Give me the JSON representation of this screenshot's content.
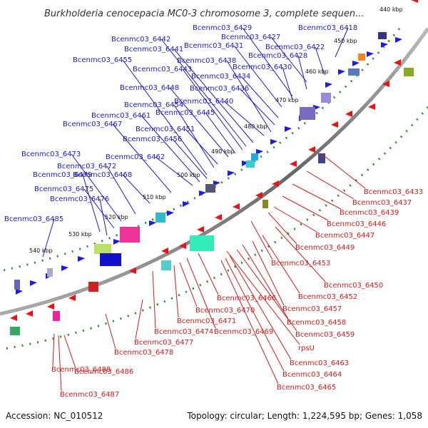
{
  "title": "Burkholderia cenocepacia MC0-3 chromosome 3, complete sequen...",
  "footer": {
    "accession": "Accession: NC_010512",
    "summary": "Topology: circular; Length: 1,224,595 bp; Genes: 1,058"
  },
  "ticks": [
    "440 kbp",
    "450 kbp",
    "460 kbp",
    "470 kbp",
    "480 kbp",
    "490 kbp",
    "500 kbp",
    "510 kbp",
    "520 kbp",
    "530 kbp",
    "540 kbp"
  ],
  "forward_genes": [
    "Bcenmc03_6418",
    "Bcenmc03_6422",
    "Bcenmc03_6427",
    "Bcenmc03_6428",
    "Bcenmc03_6429",
    "Bcenmc03_6430",
    "Bcenmc03_6431",
    "Bcenmc03_6434",
    "Bcenmc03_6436",
    "Bcenmc03_6438",
    "Bcenmc03_6440",
    "Bcenmc03_6441",
    "Bcenmc03_6442",
    "Bcenmc03_6443",
    "Bcenmc03_6445",
    "Bcenmc03_6448",
    "Bcenmc03_6451",
    "Bcenmc03_6454",
    "Bcenmc03_6455",
    "Bcenmc03_6456",
    "Bcenmc03_6461",
    "Bcenmc03_6462",
    "Bcenmc03_6467",
    "Bcenmc03_6468",
    "Bcenmc03_6472",
    "Bcenmc03_6473",
    "Bcenmc03_6475",
    "Bcenmc03_6476",
    "Bcenmc03_6479",
    "Bcenmc03_6485"
  ],
  "reverse_genes": [
    "Bcenmc03_6433",
    "Bcenmc03_6437",
    "Bcenmc03_6439",
    "Bcenmc03_6446",
    "Bcenmc03_6447",
    "Bcenmc03_6449",
    "Bcenmc03_6453",
    "Bcenmc03_6450",
    "Bcenmc03_6452",
    "Bcenmc03_6457",
    "Bcenmc03_6458",
    "Bcenmc03_6459",
    "rpsU",
    "Bcenmc03_6463",
    "Bcenmc03_6464",
    "Bcenmc03_6465",
    "Bcenmc03_6466",
    "Bcenmc03_6469",
    "Bcenmc03_6470",
    "Bcenmc03_6471",
    "Bcenmc03_6474",
    "Bcenmc03_6477",
    "Bcenmc03_6478",
    "Bcenmc03_6486",
    "Bcenmc03_6487",
    "Bcenmc03_6488"
  ],
  "colors": {
    "forward": "#1a1ad6",
    "reverse": "#d41a1a",
    "backbone": "#777777",
    "ticks": "#2e8b2e"
  }
}
